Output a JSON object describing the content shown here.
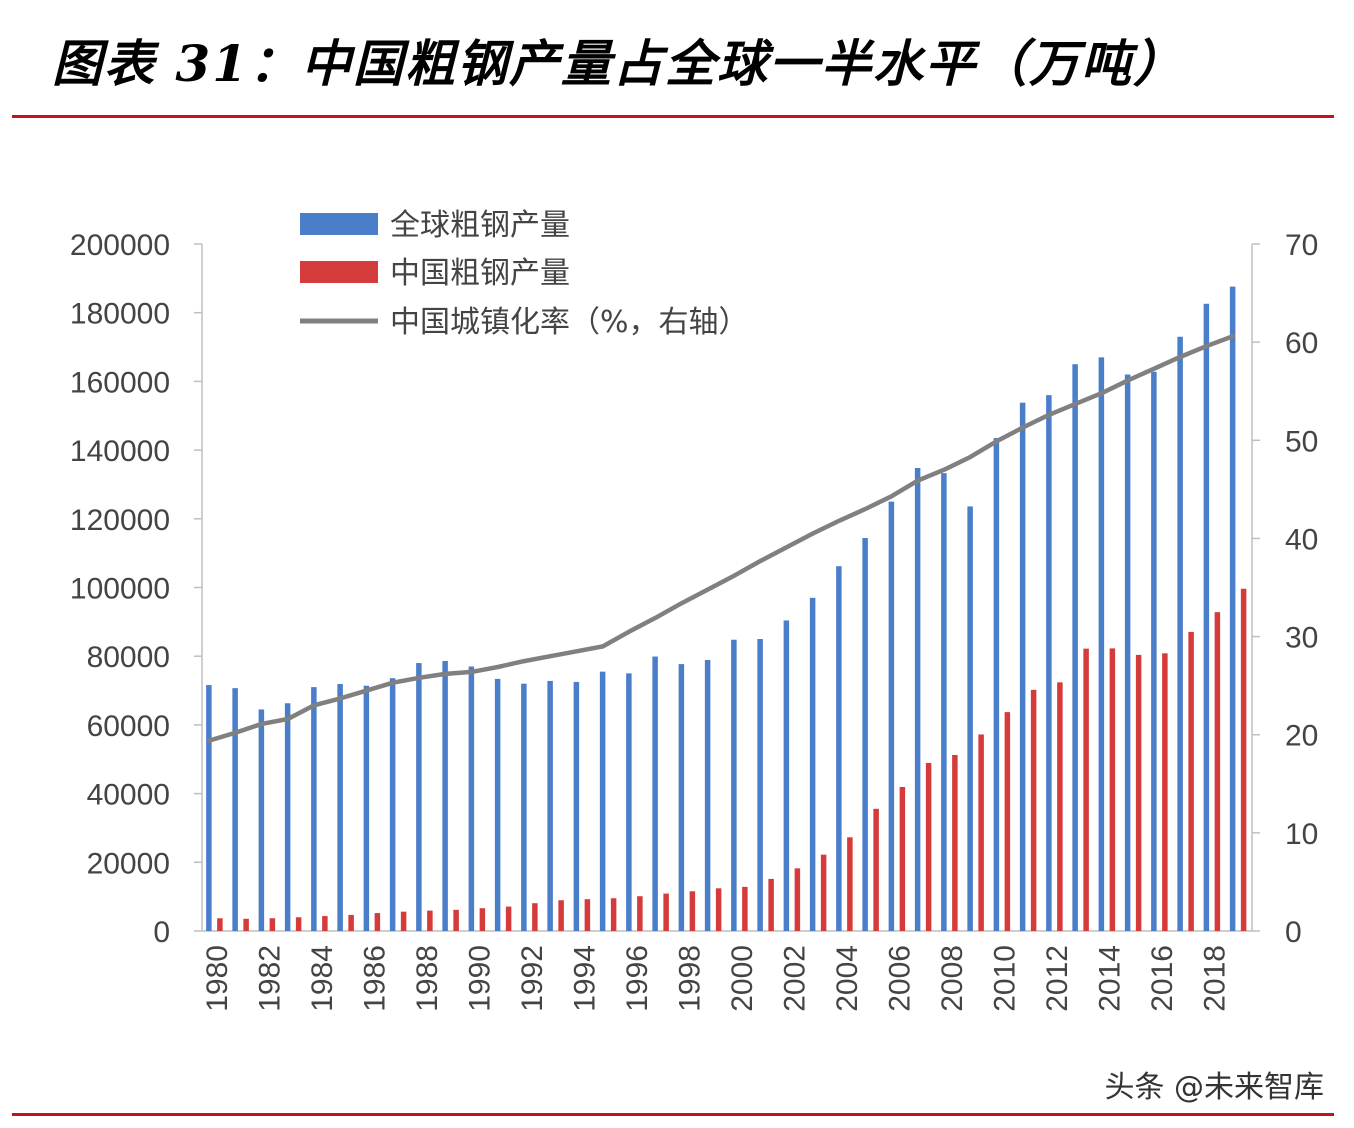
{
  "title": "图表 31：中国粗钢产量占全球一半水平（万吨）",
  "watermark": "头条 @未来智库",
  "colors": {
    "global": "#4a7ec9",
    "china": "#d63b3b",
    "urban": "#808080",
    "rule": "#c0141b"
  },
  "chart_data": {
    "type": "bar",
    "title": "图表 31：中国粗钢产量占全球一半水平（万吨）",
    "x": [
      1980,
      1981,
      1982,
      1983,
      1984,
      1985,
      1986,
      1987,
      1988,
      1989,
      1990,
      1991,
      1992,
      1993,
      1994,
      1995,
      1996,
      1997,
      1998,
      1999,
      2000,
      2001,
      2002,
      2003,
      2004,
      2005,
      2006,
      2007,
      2008,
      2009,
      2010,
      2011,
      2012,
      2013,
      2014,
      2015,
      2016,
      2017,
      2018,
      2019
    ],
    "x_tick_labels": [
      "1980",
      "1982",
      "1984",
      "1986",
      "1988",
      "1990",
      "1992",
      "1994",
      "1996",
      "1998",
      "2000",
      "2002",
      "2004",
      "2006",
      "2008",
      "2010",
      "2012",
      "2014",
      "2016",
      "2018"
    ],
    "ylim_left": [
      0,
      200000
    ],
    "yticks_left": [
      "0",
      "20000",
      "40000",
      "60000",
      "80000",
      "100000",
      "120000",
      "140000",
      "160000",
      "180000",
      "200000"
    ],
    "ylim_right": [
      0,
      70
    ],
    "yticks_right": [
      "0",
      "10",
      "20",
      "30",
      "40",
      "50",
      "60",
      "70"
    ],
    "legend_position": "top-left",
    "grid": false,
    "series": [
      {
        "name": "全球粗钢产量",
        "type": "bar",
        "values": [
          71600,
          70700,
          64500,
          66300,
          71000,
          71900,
          71400,
          73600,
          78000,
          78600,
          77000,
          73400,
          72000,
          72800,
          72500,
          75500,
          75000,
          79900,
          77700,
          78900,
          84800,
          85000,
          90400,
          97000,
          106200,
          114400,
          125000,
          134800,
          133300,
          123600,
          143500,
          153800,
          156000,
          165000,
          167000,
          162000,
          162800,
          173000,
          182600,
          187600
        ]
      },
      {
        "name": "中国粗钢产量",
        "type": "bar",
        "values": [
          3712,
          3560,
          3716,
          4000,
          4347,
          4679,
          5220,
          5628,
          5943,
          6159,
          6635,
          7100,
          8093,
          8956,
          9261,
          9536,
          10124,
          10894,
          11559,
          12426,
          12850,
          15163,
          18237,
          22234,
          27280,
          35579,
          41915,
          48929,
          51234,
          57218,
          63723,
          70197,
          72388,
          82200,
          82270,
          80383,
          80837,
          87074,
          92826,
          99634
        ]
      },
      {
        "name": "中国城镇化率（%，右轴）",
        "type": "line",
        "axis": "right",
        "values": [
          19.4,
          20.2,
          21.1,
          21.6,
          23.0,
          23.7,
          24.5,
          25.3,
          25.8,
          26.2,
          26.4,
          26.9,
          27.5,
          28.0,
          28.5,
          29.0,
          30.5,
          31.9,
          33.4,
          34.8,
          36.2,
          37.7,
          39.1,
          40.5,
          41.8,
          43.0,
          44.3,
          45.9,
          47.0,
          48.3,
          49.9,
          51.3,
          52.6,
          53.7,
          54.8,
          56.1,
          57.3,
          58.5,
          59.6,
          60.6
        ]
      }
    ]
  }
}
